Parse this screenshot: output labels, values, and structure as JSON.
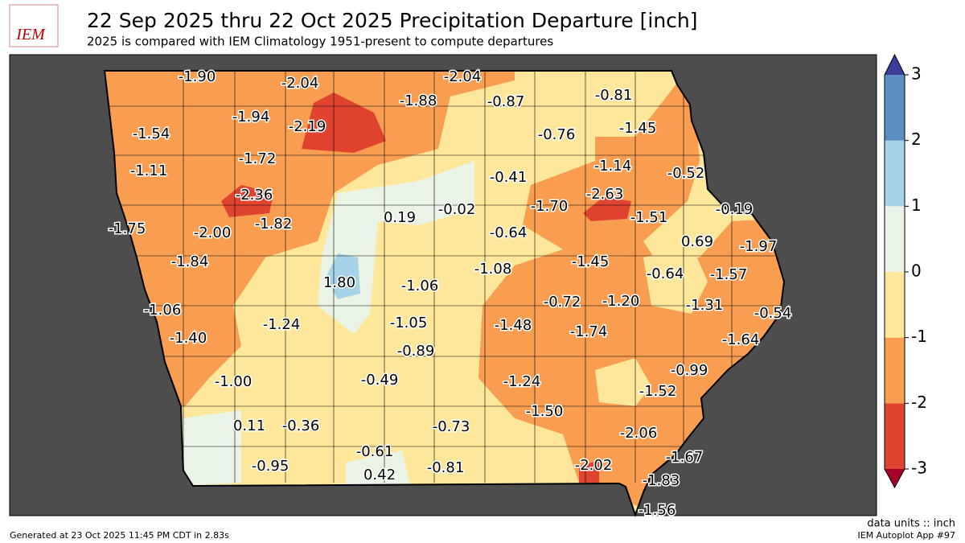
{
  "header": {
    "logo": "IEM",
    "title": "22 Sep 2025 thru 22 Oct 2025 Precipitation Departure [inch]",
    "subtitle": "2025 is compared with IEM Climatology 1951-present to compute departures"
  },
  "labels": [
    "-1.90",
    "-2.04",
    "-2.04",
    "-1.88",
    "-0.87",
    "-0.81",
    "-1.54",
    "-1.94",
    "-2.19",
    "-0.76",
    "-1.45",
    "-1.72",
    "-1.14",
    "-0.52",
    "-1.11",
    "-0.41",
    "-2.36",
    "-2.63",
    "0.19",
    "-0.02",
    "-1.70",
    "-1.51",
    "-0.19",
    "-1.75",
    "-2.00",
    "-1.82",
    "-0.64",
    "0.69",
    "-1.97",
    "-1.84",
    "-1.08",
    "-1.45",
    "-0.64",
    "-1.57",
    "1.80",
    "-1.06",
    "-1.06",
    "-0.72",
    "-1.20",
    "-1.31",
    "-0.54",
    "-1.24",
    "-1.05",
    "-1.48",
    "-1.74",
    "-1.40",
    "-1.64",
    "-0.89",
    "-1.00",
    "-0.49",
    "-1.24",
    "-0.99",
    "-1.52",
    "-1.50",
    "0.11",
    "-0.36",
    "-0.73",
    "-2.06",
    "-0.61",
    "-1.67",
    "-0.95",
    "-0.81",
    "-2.02",
    "0.42",
    "-1.83",
    "-1.56"
  ],
  "colorbar": {
    "ticks": [
      -3,
      -2,
      -1,
      0,
      1,
      2,
      3
    ],
    "colors": [
      "#e0432f",
      "#f99e50",
      "#fee79b",
      "#e9f4e6",
      "#a6d3e8",
      "#5b8ec3"
    ],
    "under": "#a50026",
    "over": "#3a3d9a"
  },
  "footer": {
    "units": "data units :: inch",
    "generated": "Generated at 23 Oct 2025 11:45 PM CDT in 2.83s",
    "app": "IEM Autoplot App #97"
  }
}
